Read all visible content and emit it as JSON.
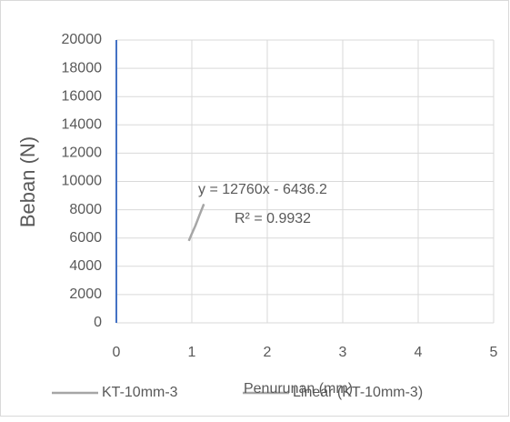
{
  "chart_data": {
    "type": "line",
    "xlabel": "Penurunan (mm)",
    "ylabel": "Beban (N)",
    "series": [
      {
        "name": "KT-10mm-3",
        "color": "#a6a6a6",
        "x": [
          0.96,
          1.0,
          1.05,
          1.1,
          1.16
        ],
        "values": [
          5800,
          6300,
          6900,
          7600,
          8400
        ]
      },
      {
        "name": "Linear (KT-10mm-3)",
        "color": "#a6a6a6",
        "x": [
          0.96,
          1.16
        ],
        "values": [
          5813,
          8365
        ]
      }
    ],
    "annotations": [
      "y = 12760x - 6436.2",
      "R² = 0.9932"
    ],
    "xlim": [
      0,
      5
    ],
    "xticks": [
      0,
      1,
      2,
      3,
      4,
      5
    ],
    "ylim": [
      0,
      20000
    ],
    "yticks": [
      0,
      2000,
      4000,
      6000,
      8000,
      10000,
      12000,
      14000,
      16000,
      18000,
      20000
    ],
    "grid": true,
    "legend": "bottom"
  }
}
